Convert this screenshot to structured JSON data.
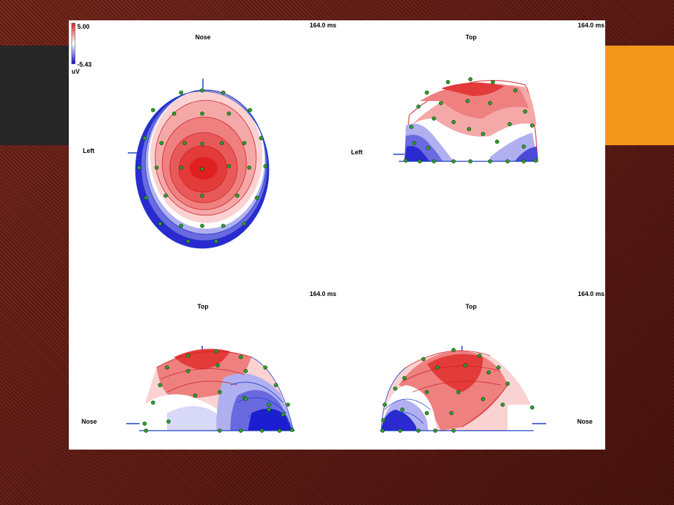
{
  "colorbar": {
    "max_label": "5.00",
    "min_label": "-5.43",
    "unit": "uV",
    "max_color": "#e02020",
    "min_color": "#1010c8"
  },
  "views": [
    {
      "time_label": "164.0 ms",
      "top_label": "Nose",
      "side_label": "Left"
    },
    {
      "time_label": "164.0 ms",
      "top_label": "Top",
      "side_label": "Left"
    },
    {
      "time_label": "164.0 ms",
      "top_label": "Top",
      "side_label": "Nose"
    },
    {
      "time_label": "164.0 ms",
      "top_label": "Top",
      "side_label": "Nose"
    }
  ]
}
